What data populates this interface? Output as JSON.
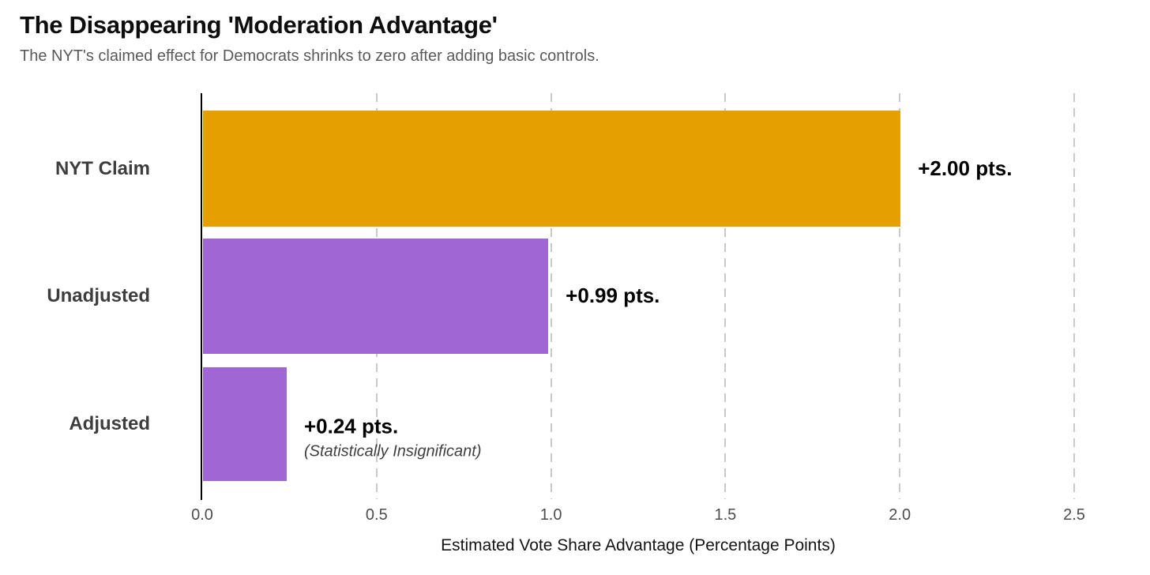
{
  "header": {
    "title": "The Disappearing 'Moderation Advantage'",
    "subtitle": "The NYT's claimed effect for Democrats shrinks to zero after adding basic controls."
  },
  "chart_data": {
    "type": "bar",
    "orientation": "horizontal",
    "title": "The Disappearing 'Moderation Advantage'",
    "subtitle": "The NYT's claimed effect for Democrats shrinks to zero after adding basic controls.",
    "categories": [
      "NYT Claim",
      "Unadjusted",
      "Adjusted"
    ],
    "values": [
      2.0,
      0.99,
      0.24
    ],
    "value_labels": [
      "+2.00 pts.",
      "+0.99 pts.",
      "+0.24 pts."
    ],
    "annotations": [
      "",
      "",
      "(Statistically Insignificant)"
    ],
    "bar_colors": [
      "#E5A000",
      "#A066D3",
      "#A066D3"
    ],
    "xlabel": "Estimated Vote Share Advantage (Percentage Points)",
    "ylabel": "",
    "xlim": [
      0,
      2.5
    ],
    "xticks": [
      "0.0",
      "0.5",
      "1.0",
      "1.5",
      "2.0",
      "2.5"
    ],
    "grid": "vertical-dashed",
    "legend": "none"
  },
  "colors": {
    "background": "#ffffff",
    "orange_bar": "#E5A000",
    "purple_bar": "#A066D3",
    "gridline": "#C9C9C9",
    "axis_line": "#000000",
    "title_text": "#0D0D0D",
    "subtitle_text": "#595959",
    "category_text": "#3D3D3D",
    "value_text": "#000000",
    "annotation_text": "#3F3F3F",
    "tick_text": "#4D4D4D"
  }
}
